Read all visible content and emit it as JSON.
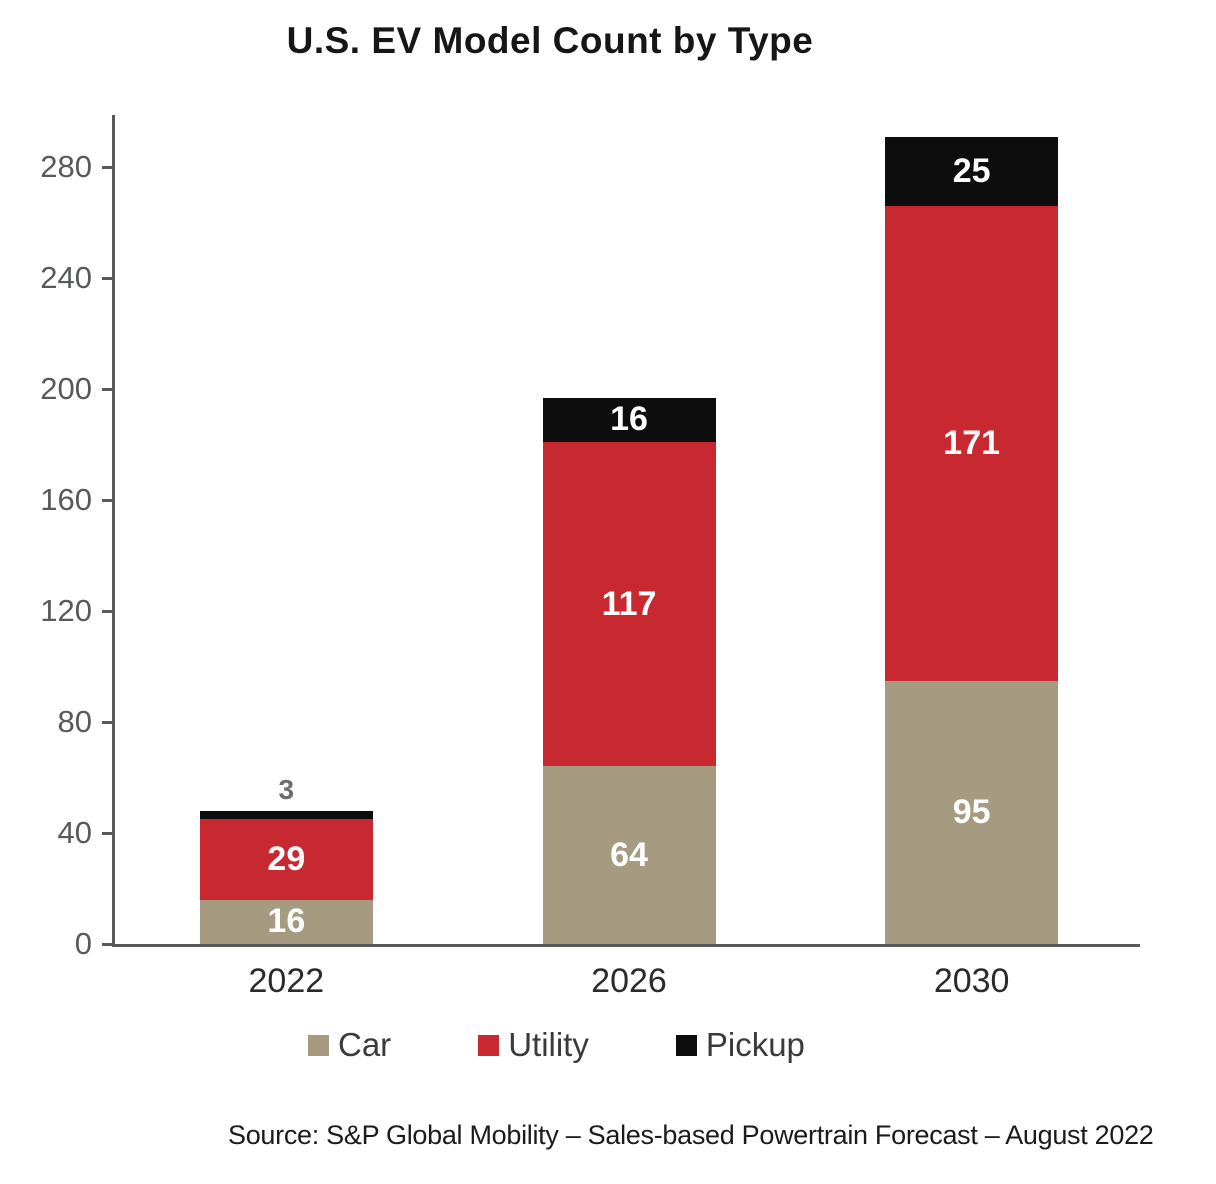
{
  "title": "U.S. EV Model Count by Type",
  "source": "Source: S&P Global Mobility – Sales-based Powertrain Forecast – August 2022",
  "colors": {
    "car": "#a69b81",
    "utility": "#c8282f",
    "pickup": "#0d0d0d",
    "axis": "#58595b",
    "tick_label": "#58595b",
    "inside_label": "#ffffff",
    "outside_label": "#6d6d6d"
  },
  "chart_data": {
    "type": "bar",
    "stacked": true,
    "title": "U.S. EV Model Count by Type",
    "categories": [
      "2022",
      "2026",
      "2030"
    ],
    "series": [
      {
        "name": "Car",
        "color_key": "car",
        "values": [
          16,
          64,
          95
        ]
      },
      {
        "name": "Utility",
        "color_key": "utility",
        "values": [
          29,
          117,
          171
        ]
      },
      {
        "name": "Pickup",
        "color_key": "pickup",
        "values": [
          3,
          16,
          25
        ]
      }
    ],
    "totals": [
      48,
      197,
      291
    ],
    "xlabel": "",
    "ylabel": "",
    "yticks": [
      0,
      40,
      80,
      120,
      160,
      200,
      240,
      280
    ],
    "ylim": [
      0,
      300
    ],
    "grid": false,
    "legend_position": "bottom",
    "legend": [
      "Car",
      "Utility",
      "Pickup"
    ]
  }
}
